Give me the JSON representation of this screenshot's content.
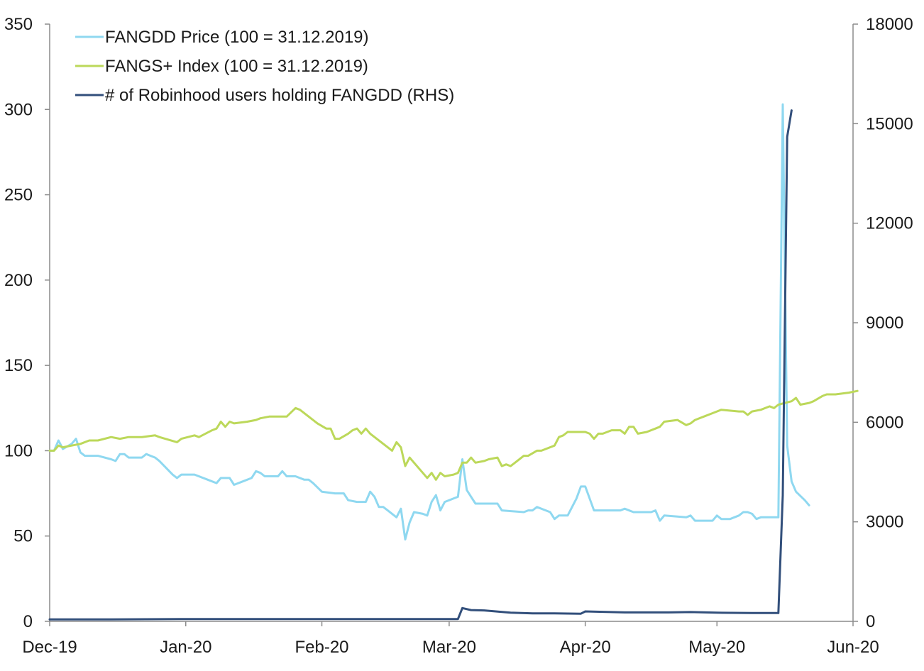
{
  "chart_data": {
    "type": "line",
    "title": "",
    "xlabel": "",
    "ylabel": "",
    "y2label": "",
    "x_range": [
      "2019-12-01",
      "2020-06-01"
    ],
    "x_ticks": [
      {
        "date": "2019-12-01",
        "label": "Dec-19"
      },
      {
        "date": "2020-01-01",
        "label": "Jan-20"
      },
      {
        "date": "2020-02-01",
        "label": "Feb-20"
      },
      {
        "date": "2020-03-01",
        "label": "Mar-20"
      },
      {
        "date": "2020-04-01",
        "label": "Apr-20"
      },
      {
        "date": "2020-05-01",
        "label": "May-20"
      },
      {
        "date": "2020-06-01",
        "label": "Jun-20"
      }
    ],
    "ylim": [
      0,
      350
    ],
    "y_ticks": [
      0,
      50,
      100,
      150,
      200,
      250,
      300,
      350
    ],
    "y2lim": [
      0,
      18000
    ],
    "y2_ticks": [
      0,
      3000,
      6000,
      9000,
      12000,
      15000,
      18000
    ],
    "grid": false,
    "legend_position": "top-left",
    "series": [
      {
        "name": "FANGDD Price (100 = 31.12.2019)",
        "axis": "left",
        "color": "#8fd8f0",
        "points": [
          [
            "2019-12-01",
            100
          ],
          [
            "2019-12-02",
            100
          ],
          [
            "2019-12-03",
            106
          ],
          [
            "2019-12-04",
            101
          ],
          [
            "2019-12-06",
            104
          ],
          [
            "2019-12-07",
            107
          ],
          [
            "2019-12-08",
            99
          ],
          [
            "2019-12-09",
            97
          ],
          [
            "2019-12-12",
            97
          ],
          [
            "2019-12-15",
            95
          ],
          [
            "2019-12-16",
            94
          ],
          [
            "2019-12-17",
            98
          ],
          [
            "2019-12-18",
            98
          ],
          [
            "2019-12-19",
            96
          ],
          [
            "2019-12-22",
            96
          ],
          [
            "2019-12-23",
            98
          ],
          [
            "2019-12-25",
            96
          ],
          [
            "2019-12-26",
            94
          ],
          [
            "2019-12-29",
            86
          ],
          [
            "2019-12-30",
            84
          ],
          [
            "2019-12-31",
            86
          ],
          [
            "2020-01-03",
            86
          ],
          [
            "2020-01-06",
            83
          ],
          [
            "2020-01-08",
            81
          ],
          [
            "2020-01-09",
            84
          ],
          [
            "2020-01-11",
            84
          ],
          [
            "2020-01-12",
            80
          ],
          [
            "2020-01-14",
            82
          ],
          [
            "2020-01-16",
            84
          ],
          [
            "2020-01-17",
            88
          ],
          [
            "2020-01-18",
            87
          ],
          [
            "2020-01-19",
            85
          ],
          [
            "2020-01-22",
            85
          ],
          [
            "2020-01-23",
            88
          ],
          [
            "2020-01-24",
            85
          ],
          [
            "2020-01-26",
            85
          ],
          [
            "2020-01-28",
            83
          ],
          [
            "2020-01-29",
            83
          ],
          [
            "2020-01-30",
            81
          ],
          [
            "2020-02-01",
            76
          ],
          [
            "2020-02-04",
            75
          ],
          [
            "2020-02-06",
            75
          ],
          [
            "2020-02-07",
            71
          ],
          [
            "2020-02-09",
            70
          ],
          [
            "2020-02-11",
            70
          ],
          [
            "2020-02-12",
            76
          ],
          [
            "2020-02-13",
            73
          ],
          [
            "2020-02-14",
            67
          ],
          [
            "2020-02-15",
            67
          ],
          [
            "2020-02-16",
            65
          ],
          [
            "2020-02-18",
            61
          ],
          [
            "2020-02-19",
            66
          ],
          [
            "2020-02-20",
            48
          ],
          [
            "2020-02-21",
            58
          ],
          [
            "2020-02-22",
            64
          ],
          [
            "2020-02-24",
            63
          ],
          [
            "2020-02-25",
            62
          ],
          [
            "2020-02-26",
            70
          ],
          [
            "2020-02-27",
            74
          ],
          [
            "2020-02-28",
            65
          ],
          [
            "2020-02-29",
            70
          ],
          [
            "2020-03-03",
            73
          ],
          [
            "2020-03-04",
            95
          ],
          [
            "2020-03-05",
            77
          ],
          [
            "2020-03-06",
            73
          ],
          [
            "2020-03-07",
            69
          ],
          [
            "2020-03-12",
            69
          ],
          [
            "2020-03-13",
            65
          ],
          [
            "2020-03-18",
            64
          ],
          [
            "2020-03-19",
            65
          ],
          [
            "2020-03-20",
            65
          ],
          [
            "2020-03-21",
            67
          ],
          [
            "2020-03-24",
            64
          ],
          [
            "2020-03-25",
            60
          ],
          [
            "2020-03-26",
            62
          ],
          [
            "2020-03-28",
            62
          ],
          [
            "2020-03-30",
            72
          ],
          [
            "2020-03-31",
            79
          ],
          [
            "2020-04-01",
            79
          ],
          [
            "2020-04-03",
            65
          ],
          [
            "2020-04-09",
            65
          ],
          [
            "2020-04-10",
            66
          ],
          [
            "2020-04-12",
            64
          ],
          [
            "2020-04-16",
            64
          ],
          [
            "2020-04-17",
            65
          ],
          [
            "2020-04-18",
            59
          ],
          [
            "2020-04-19",
            62
          ],
          [
            "2020-04-24",
            61
          ],
          [
            "2020-04-25",
            62
          ],
          [
            "2020-04-26",
            59
          ],
          [
            "2020-04-30",
            59
          ],
          [
            "2020-05-01",
            62
          ],
          [
            "2020-05-02",
            60
          ],
          [
            "2020-05-04",
            60
          ],
          [
            "2020-05-06",
            62
          ],
          [
            "2020-05-07",
            64
          ],
          [
            "2020-05-08",
            64
          ],
          [
            "2020-05-09",
            63
          ],
          [
            "2020-05-10",
            60
          ],
          [
            "2020-05-11",
            61
          ],
          [
            "2020-05-15",
            61
          ],
          [
            "2020-05-16",
            303
          ],
          [
            "2020-05-17",
            103
          ],
          [
            "2020-05-18",
            82
          ],
          [
            "2020-05-19",
            76
          ],
          [
            "2020-05-21",
            71
          ],
          [
            "2020-05-22",
            68
          ]
        ]
      },
      {
        "name": "FANGS+ Index (100 = 31.12.2019)",
        "axis": "left",
        "color": "#bcd85a",
        "points": [
          [
            "2019-12-01",
            100
          ],
          [
            "2019-12-02",
            100
          ],
          [
            "2019-12-03",
            103
          ],
          [
            "2019-12-04",
            102
          ],
          [
            "2019-12-06",
            103
          ],
          [
            "2019-12-08",
            104
          ],
          [
            "2019-12-10",
            106
          ],
          [
            "2019-12-12",
            106
          ],
          [
            "2019-12-15",
            108
          ],
          [
            "2019-12-17",
            107
          ],
          [
            "2019-12-19",
            108
          ],
          [
            "2019-12-22",
            108
          ],
          [
            "2019-12-25",
            109
          ],
          [
            "2019-12-26",
            108
          ],
          [
            "2019-12-30",
            105
          ],
          [
            "2019-12-31",
            107
          ],
          [
            "2020-01-03",
            109
          ],
          [
            "2020-01-04",
            108
          ],
          [
            "2020-01-07",
            112
          ],
          [
            "2020-01-08",
            113
          ],
          [
            "2020-01-09",
            117
          ],
          [
            "2020-01-10",
            114
          ],
          [
            "2020-01-11",
            117
          ],
          [
            "2020-01-12",
            116
          ],
          [
            "2020-01-15",
            117
          ],
          [
            "2020-01-17",
            118
          ],
          [
            "2020-01-18",
            119
          ],
          [
            "2020-01-20",
            120
          ],
          [
            "2020-01-24",
            120
          ],
          [
            "2020-01-26",
            125
          ],
          [
            "2020-01-27",
            124
          ],
          [
            "2020-01-31",
            116
          ],
          [
            "2020-02-02",
            113
          ],
          [
            "2020-02-03",
            113
          ],
          [
            "2020-02-04",
            107
          ],
          [
            "2020-02-05",
            107
          ],
          [
            "2020-02-07",
            110
          ],
          [
            "2020-02-08",
            112
          ],
          [
            "2020-02-09",
            113
          ],
          [
            "2020-02-10",
            110
          ],
          [
            "2020-02-11",
            113
          ],
          [
            "2020-02-12",
            110
          ],
          [
            "2020-02-16",
            102
          ],
          [
            "2020-02-17",
            100
          ],
          [
            "2020-02-18",
            105
          ],
          [
            "2020-02-19",
            102
          ],
          [
            "2020-02-20",
            91
          ],
          [
            "2020-02-21",
            96
          ],
          [
            "2020-02-24",
            87
          ],
          [
            "2020-02-25",
            84
          ],
          [
            "2020-02-26",
            87
          ],
          [
            "2020-02-27",
            83
          ],
          [
            "2020-02-28",
            87
          ],
          [
            "2020-02-29",
            85
          ],
          [
            "2020-03-02",
            86
          ],
          [
            "2020-03-03",
            87
          ],
          [
            "2020-03-04",
            93
          ],
          [
            "2020-03-05",
            93
          ],
          [
            "2020-03-06",
            96
          ],
          [
            "2020-03-07",
            93
          ],
          [
            "2020-03-09",
            94
          ],
          [
            "2020-03-10",
            95
          ],
          [
            "2020-03-12",
            96
          ],
          [
            "2020-03-13",
            91
          ],
          [
            "2020-03-14",
            92
          ],
          [
            "2020-03-15",
            91
          ],
          [
            "2020-03-16",
            93
          ],
          [
            "2020-03-18",
            97
          ],
          [
            "2020-03-19",
            97
          ],
          [
            "2020-03-21",
            100
          ],
          [
            "2020-03-22",
            100
          ],
          [
            "2020-03-23",
            101
          ],
          [
            "2020-03-25",
            103
          ],
          [
            "2020-03-26",
            108
          ],
          [
            "2020-03-27",
            109
          ],
          [
            "2020-03-28",
            111
          ],
          [
            "2020-04-01",
            111
          ],
          [
            "2020-04-02",
            110
          ],
          [
            "2020-04-03",
            107
          ],
          [
            "2020-04-04",
            110
          ],
          [
            "2020-04-05",
            110
          ],
          [
            "2020-04-06",
            111
          ],
          [
            "2020-04-07",
            112
          ],
          [
            "2020-04-09",
            112
          ],
          [
            "2020-04-10",
            110
          ],
          [
            "2020-04-11",
            114
          ],
          [
            "2020-04-12",
            114
          ],
          [
            "2020-04-13",
            110
          ],
          [
            "2020-04-15",
            111
          ],
          [
            "2020-04-17",
            113
          ],
          [
            "2020-04-18",
            114
          ],
          [
            "2020-04-19",
            117
          ],
          [
            "2020-04-22",
            118
          ],
          [
            "2020-04-24",
            115
          ],
          [
            "2020-04-25",
            116
          ],
          [
            "2020-04-26",
            118
          ],
          [
            "2020-04-28",
            120
          ],
          [
            "2020-04-30",
            122
          ],
          [
            "2020-05-01",
            123
          ],
          [
            "2020-05-02",
            124
          ],
          [
            "2020-05-06",
            123
          ],
          [
            "2020-05-07",
            123
          ],
          [
            "2020-05-08",
            121
          ],
          [
            "2020-05-09",
            123
          ],
          [
            "2020-05-11",
            124
          ],
          [
            "2020-05-13",
            126
          ],
          [
            "2020-05-14",
            125
          ],
          [
            "2020-05-15",
            127
          ],
          [
            "2020-05-18",
            129
          ],
          [
            "2020-05-19",
            131
          ],
          [
            "2020-05-20",
            127
          ],
          [
            "2020-05-22",
            128
          ],
          [
            "2020-05-23",
            129
          ],
          [
            "2020-05-25",
            132
          ],
          [
            "2020-05-26",
            133
          ],
          [
            "2020-05-28",
            133
          ],
          [
            "2020-05-31",
            134
          ],
          [
            "2020-06-02",
            135
          ]
        ]
      },
      {
        "name": "# of Robinhood users holding FANGDD (RHS)",
        "axis": "right",
        "color": "#324f7b",
        "points": [
          [
            "2019-12-01",
            60
          ],
          [
            "2019-12-15",
            60
          ],
          [
            "2020-01-01",
            70
          ],
          [
            "2020-01-15",
            70
          ],
          [
            "2020-02-01",
            70
          ],
          [
            "2020-02-15",
            70
          ],
          [
            "2020-03-03",
            70
          ],
          [
            "2020-03-04",
            400
          ],
          [
            "2020-03-06",
            340
          ],
          [
            "2020-03-09",
            330
          ],
          [
            "2020-03-15",
            260
          ],
          [
            "2020-03-20",
            240
          ],
          [
            "2020-03-25",
            240
          ],
          [
            "2020-03-31",
            230
          ],
          [
            "2020-04-01",
            300
          ],
          [
            "2020-04-10",
            270
          ],
          [
            "2020-04-20",
            270
          ],
          [
            "2020-04-25",
            280
          ],
          [
            "2020-05-01",
            260
          ],
          [
            "2020-05-09",
            250
          ],
          [
            "2020-05-15",
            250
          ],
          [
            "2020-05-16",
            3800
          ],
          [
            "2020-05-17",
            14600
          ],
          [
            "2020-05-18",
            15400
          ]
        ]
      }
    ]
  }
}
